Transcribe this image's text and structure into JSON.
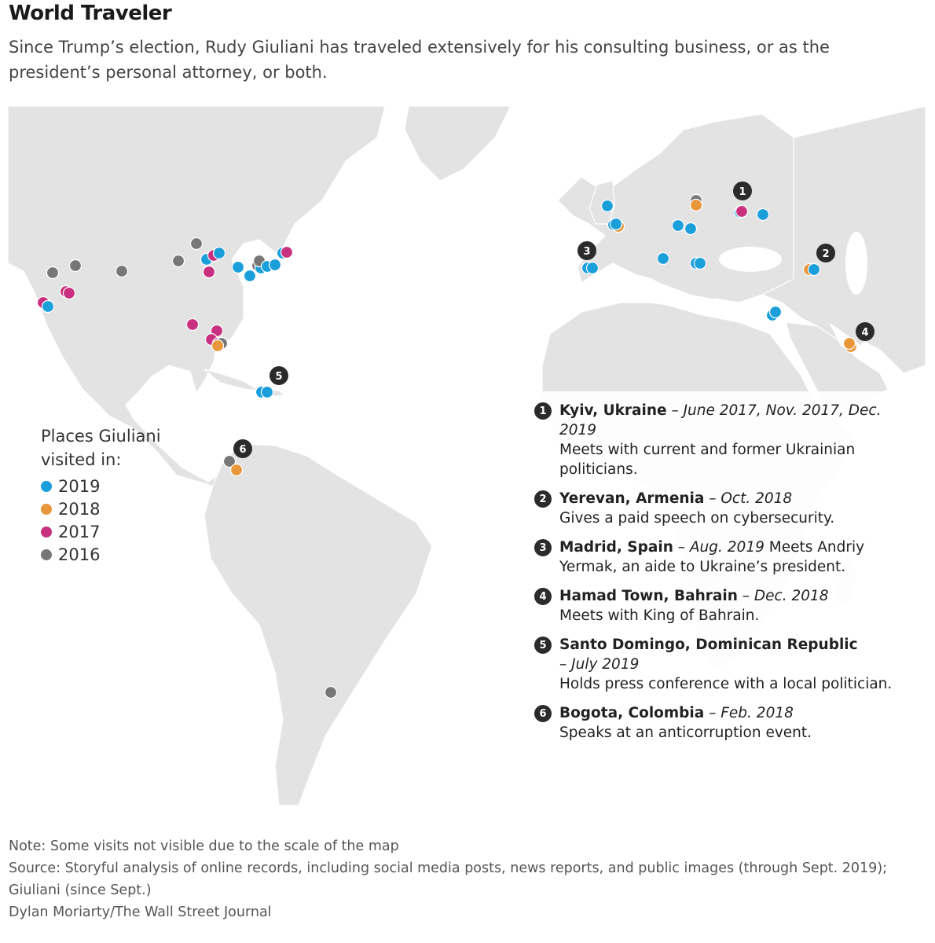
{
  "title": "World Traveler",
  "subtitle": "Since Trump’s election, Rudy Giuliani has traveled extensively for his consulting business, or as the president’s personal attorney, or both.",
  "colors": {
    "y2019": "#1a9fdb",
    "y2018": "#e8973a",
    "y2017": "#c9307f",
    "y2016": "#777777",
    "land": "#e3e3e3",
    "marker": "#2b2b2b"
  },
  "legend": {
    "title_line1": "Places Giuliani",
    "title_line2": "visited in:",
    "items": [
      {
        "label": "2019",
        "color": "#1a9fdb"
      },
      {
        "label": "2018",
        "color": "#e8973a"
      },
      {
        "label": "2017",
        "color": "#c9307f"
      },
      {
        "label": "2016",
        "color": "#777777"
      }
    ]
  },
  "markers": [
    "1",
    "2",
    "3",
    "4",
    "5",
    "6"
  ],
  "annotations": [
    {
      "num": "1",
      "place": "Kyiv, Ukraine",
      "sep": " – ",
      "date": "June 2017, Nov. 2017, Dec. 2019",
      "text": "Meets with current and former Ukrainian politicians."
    },
    {
      "num": "2",
      "place": "Yerevan, Armenia",
      "sep": " – ",
      "date": "Oct. 2018",
      "text": "Gives a paid speech on cybersecurity."
    },
    {
      "num": "3",
      "place": "Madrid, Spain",
      "sep": " – ",
      "date": "Aug. 2019",
      "text": " Meets Andriy Yermak, an aide to Ukraine’s president."
    },
    {
      "num": "4",
      "place": "Hamad Town, Bahrain",
      "sep": " – ",
      "date": "Dec. 2018",
      "text": "Meets with King of Bahrain."
    },
    {
      "num": "5",
      "place": "Santo Domingo, Dominican Republic",
      "sep": " – ",
      "date": "July 2019",
      "text": "Holds press conference with a local politician."
    },
    {
      "num": "6",
      "place": "Bogota, Colombia",
      "sep": " – ",
      "date": "Feb. 2018",
      "text": "Speaks at an anticorruption event."
    }
  ],
  "footer": {
    "note": "Note: Some visits not visible due to the scale of the map",
    "source": "Source: Storyful analysis of online records, including social media posts, news reports, and public images (through Sept. 2019); Giuliani (since Sept.)",
    "credit": "Dylan Moriarty/The Wall Street Journal"
  }
}
